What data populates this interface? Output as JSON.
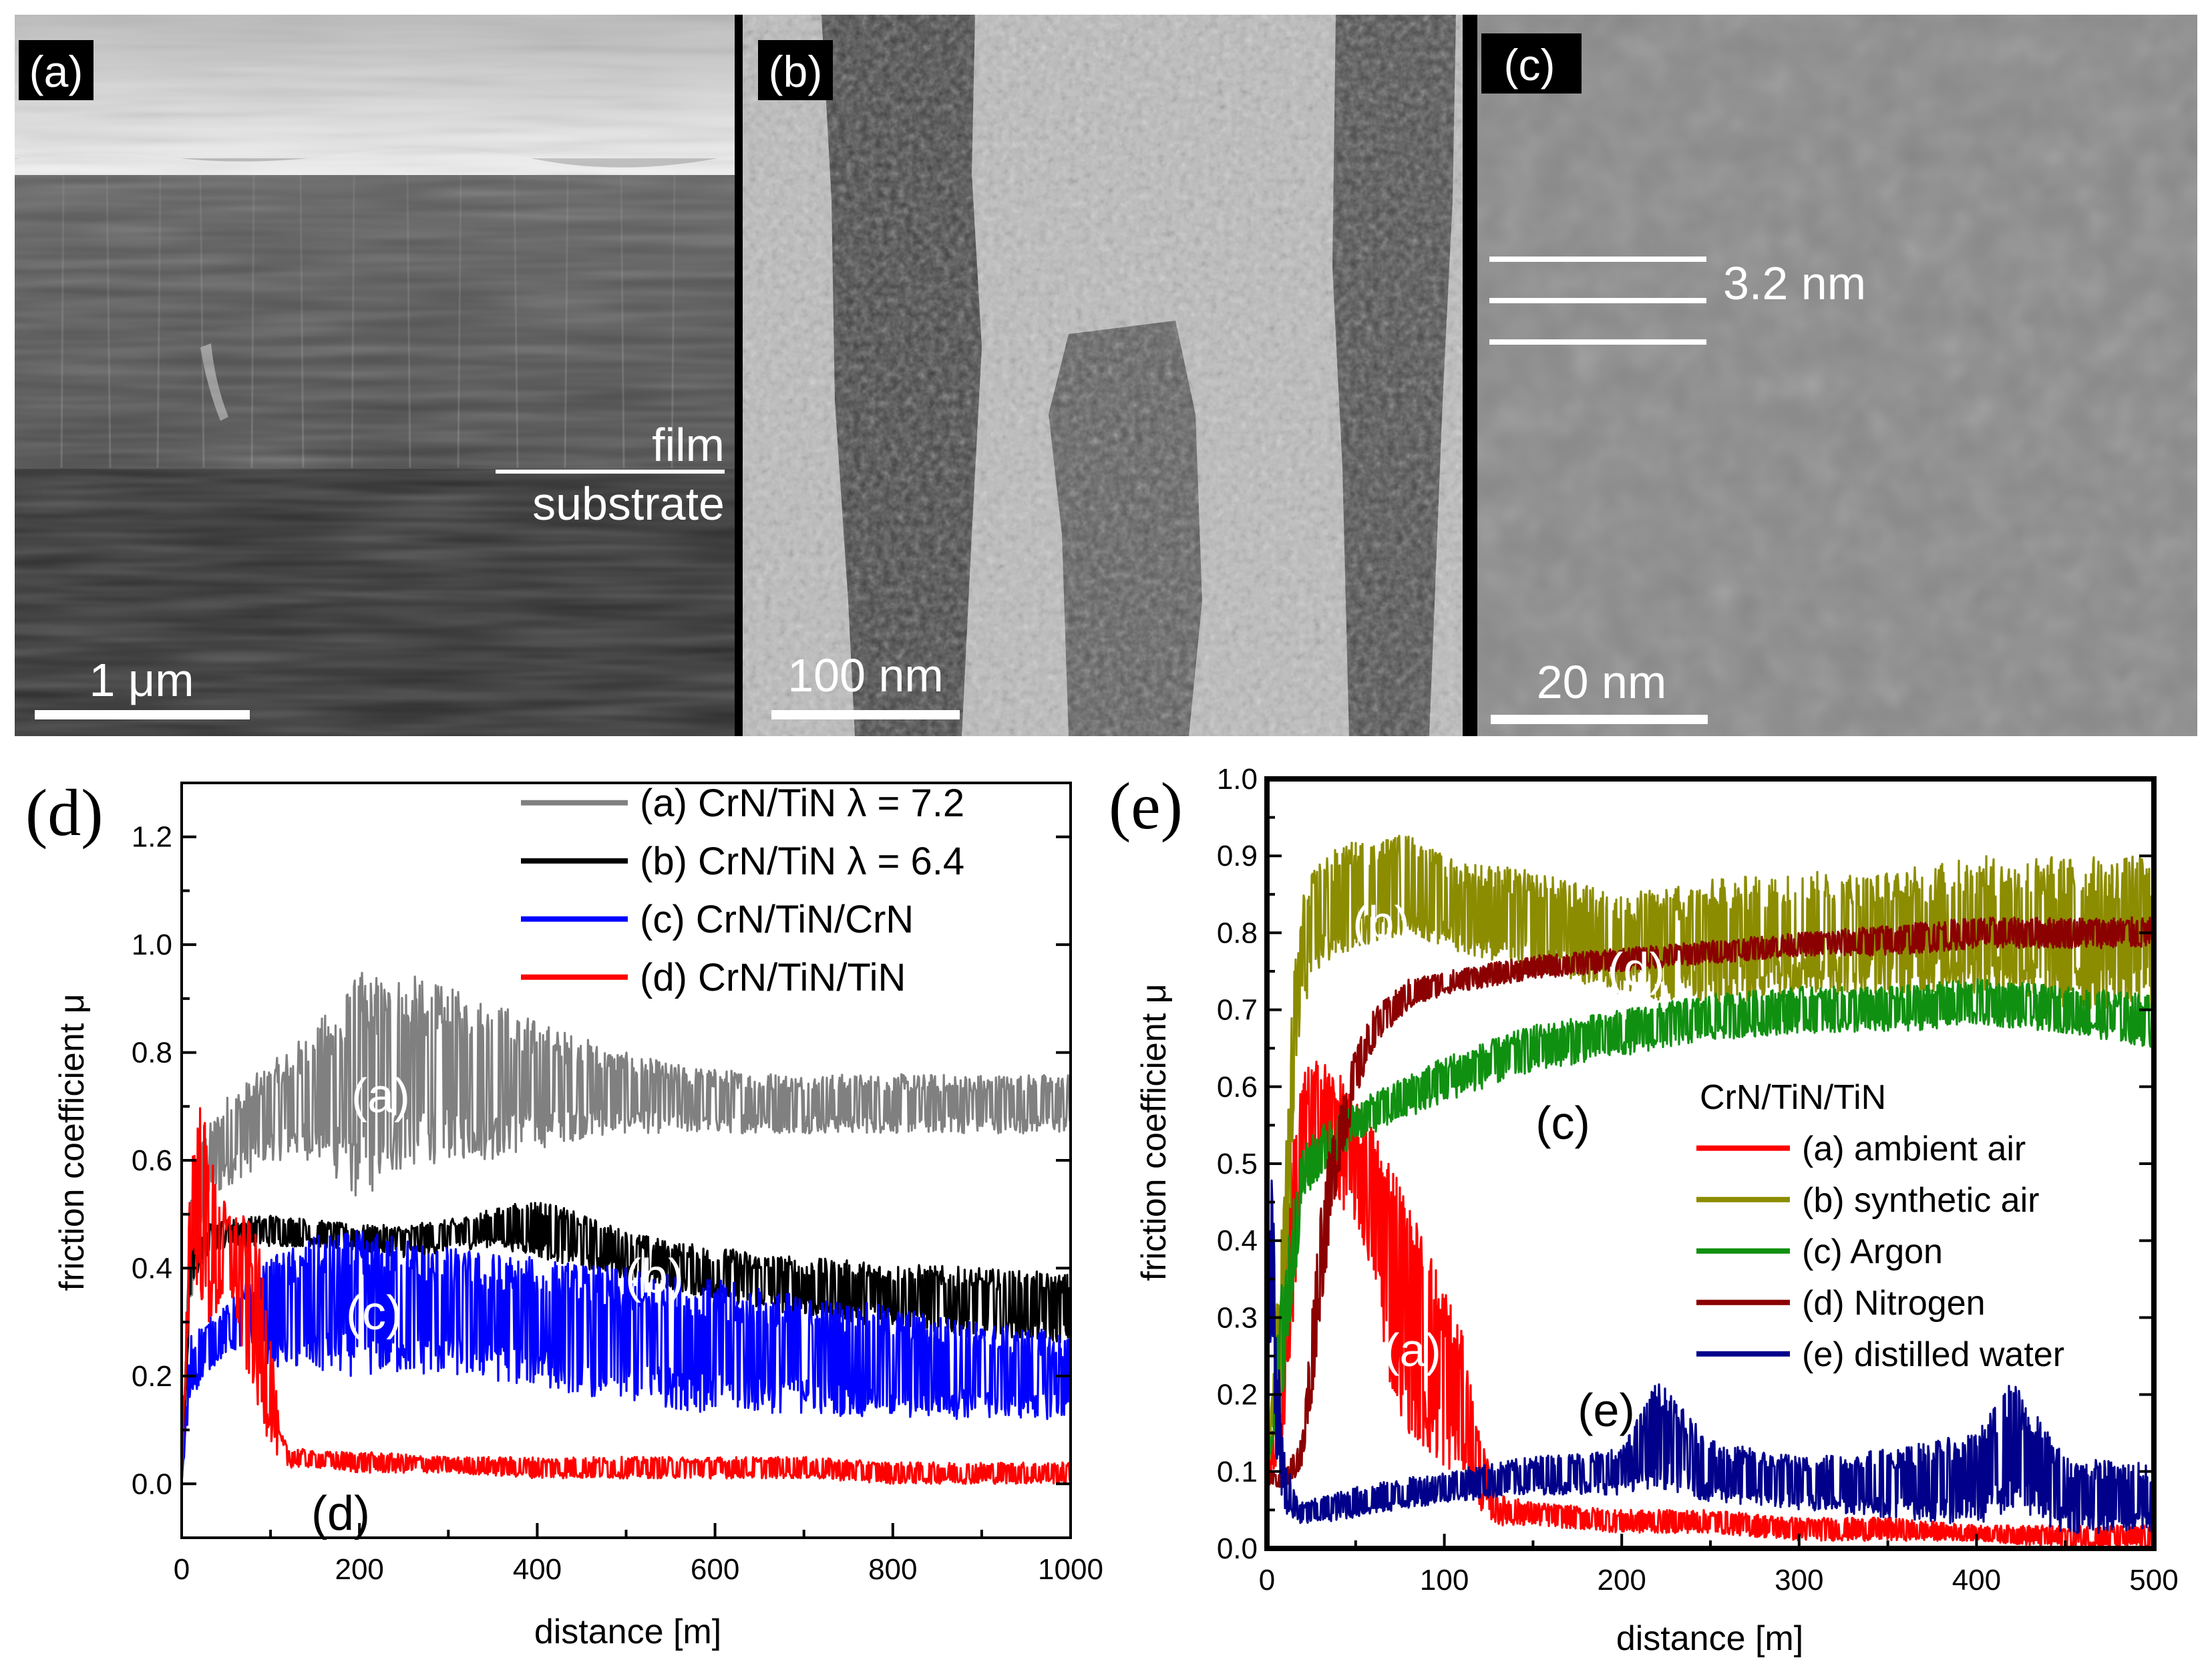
{
  "micrographs": {
    "a": {
      "panel_label": "(a)",
      "scale_bar": "1 μm",
      "film_label": "film",
      "substrate_label": "substrate"
    },
    "b": {
      "panel_label": "(b)",
      "scale_bar": "100 nm"
    },
    "c": {
      "panel_label": "(c)",
      "scale_bar": "20 nm",
      "period_label": "3.2 nm"
    }
  },
  "chart_data": [
    {
      "id": "d",
      "type": "line",
      "panel_label": "(d)",
      "xlabel": "distance [m]",
      "ylabel": "friction coefficient μ",
      "xlim": [
        0,
        1000
      ],
      "ylim": [
        -0.1,
        1.3
      ],
      "xticks": [
        0,
        200,
        400,
        600,
        800,
        1000
      ],
      "yticks": [
        0.0,
        0.2,
        0.4,
        0.6,
        0.8,
        1.0,
        1.2
      ],
      "xticklabels": [
        "0",
        "200",
        "400",
        "600",
        "800",
        "1000"
      ],
      "yticklabels": [
        "0.0",
        "0.2",
        "0.4",
        "0.6",
        "0.8",
        "1.0",
        "1.2"
      ],
      "legend_position": "top-right",
      "series": [
        {
          "name": "(a) CrN/TiN λ = 7.2",
          "color": "#808080",
          "x": [
            0,
            10,
            25,
            50,
            100,
            150,
            200,
            250,
            300,
            350,
            400,
            450,
            500,
            550,
            600,
            700,
            800,
            900,
            1000
          ],
          "low": [
            0.0,
            0.3,
            0.5,
            0.55,
            0.6,
            0.6,
            0.52,
            0.58,
            0.6,
            0.6,
            0.62,
            0.64,
            0.65,
            0.65,
            0.65,
            0.65,
            0.65,
            0.65,
            0.65
          ],
          "high": [
            0.0,
            0.55,
            0.65,
            0.72,
            0.78,
            0.85,
            0.95,
            0.95,
            0.92,
            0.9,
            0.86,
            0.83,
            0.8,
            0.78,
            0.77,
            0.76,
            0.76,
            0.76,
            0.76
          ]
        },
        {
          "name": "(b) CrN/TiN λ = 6.4",
          "color": "#000000",
          "x": [
            0,
            10,
            25,
            50,
            100,
            150,
            200,
            250,
            300,
            350,
            400,
            450,
            500,
            550,
            600,
            700,
            800,
            900,
            1000
          ],
          "low": [
            0.0,
            0.35,
            0.42,
            0.44,
            0.44,
            0.44,
            0.43,
            0.42,
            0.43,
            0.44,
            0.42,
            0.4,
            0.38,
            0.36,
            0.34,
            0.31,
            0.29,
            0.27,
            0.26
          ],
          "high": [
            0.0,
            0.45,
            0.48,
            0.49,
            0.5,
            0.49,
            0.48,
            0.48,
            0.49,
            0.51,
            0.53,
            0.5,
            0.47,
            0.45,
            0.44,
            0.42,
            0.41,
            0.4,
            0.39
          ]
        },
        {
          "name": "(c) CrN/TiN/CrN",
          "color": "#0000ff",
          "x": [
            0,
            10,
            25,
            50,
            70,
            100,
            150,
            200,
            250,
            300,
            400,
            500,
            600,
            700,
            800,
            900,
            1000
          ],
          "low": [
            0.0,
            0.15,
            0.2,
            0.24,
            0.25,
            0.22,
            0.2,
            0.2,
            0.2,
            0.2,
            0.18,
            0.15,
            0.13,
            0.13,
            0.12,
            0.12,
            0.12
          ],
          "high": [
            0.0,
            0.28,
            0.3,
            0.33,
            0.37,
            0.42,
            0.46,
            0.47,
            0.46,
            0.44,
            0.42,
            0.4,
            0.38,
            0.35,
            0.33,
            0.3,
            0.28
          ]
        },
        {
          "name": "(d) CrN/TiN/TiN",
          "color": "#ff0000",
          "x": [
            0,
            10,
            20,
            30,
            40,
            50,
            60,
            70,
            80,
            90,
            100,
            110,
            120,
            150,
            200,
            300,
            400,
            500,
            600,
            700,
            800,
            900,
            1000
          ],
          "low": [
            0.0,
            0.4,
            0.35,
            0.28,
            0.3,
            0.35,
            0.32,
            0.2,
            0.18,
            0.1,
            0.08,
            0.04,
            0.03,
            0.03,
            0.02,
            0.02,
            0.01,
            0.01,
            0.01,
            0.01,
            0.0,
            0.0,
            0.0
          ],
          "high": [
            0.0,
            0.62,
            0.72,
            0.65,
            0.55,
            0.52,
            0.5,
            0.5,
            0.48,
            0.42,
            0.3,
            0.1,
            0.07,
            0.06,
            0.06,
            0.05,
            0.05,
            0.05,
            0.05,
            0.05,
            0.04,
            0.04,
            0.04
          ]
        }
      ],
      "annotations": [
        "(a)",
        "(b)",
        "(c)",
        "(d)"
      ]
    },
    {
      "id": "e",
      "type": "line",
      "panel_label": "(e)",
      "xlabel": "distance [m]",
      "ylabel": "friction coefficient μ",
      "xlim": [
        0,
        500
      ],
      "ylim": [
        0.0,
        1.0
      ],
      "xticks": [
        0,
        100,
        200,
        300,
        400,
        500
      ],
      "yticks": [
        0.0,
        0.1,
        0.2,
        0.3,
        0.4,
        0.5,
        0.6,
        0.7,
        0.8,
        0.9,
        1.0
      ],
      "xticklabels": [
        "0",
        "100",
        "200",
        "300",
        "400",
        "500"
      ],
      "yticklabels": [
        "0.0",
        "0.1",
        "0.2",
        "0.3",
        "0.4",
        "0.5",
        "0.6",
        "0.7",
        "0.8",
        "0.9",
        "1.0"
      ],
      "legend_title": "CrN/TiN/TiN",
      "legend_position": "center-right",
      "series": [
        {
          "name": "(a) ambient air",
          "color": "#ff0000",
          "x": [
            0,
            5,
            10,
            15,
            20,
            30,
            40,
            50,
            60,
            70,
            80,
            90,
            100,
            110,
            120,
            130,
            150,
            200,
            250,
            300,
            350,
            400,
            450,
            500
          ],
          "low": [
            0.08,
            0.1,
            0.15,
            0.3,
            0.45,
            0.5,
            0.45,
            0.42,
            0.35,
            0.2,
            0.15,
            0.12,
            0.1,
            0.1,
            0.05,
            0.03,
            0.03,
            0.02,
            0.02,
            0.01,
            0.01,
            0.01,
            0.0,
            0.0
          ],
          "high": [
            0.1,
            0.2,
            0.4,
            0.55,
            0.62,
            0.64,
            0.62,
            0.58,
            0.55,
            0.52,
            0.45,
            0.4,
            0.35,
            0.28,
            0.15,
            0.07,
            0.06,
            0.05,
            0.05,
            0.04,
            0.04,
            0.03,
            0.03,
            0.03
          ]
        },
        {
          "name": "(b) synthetic air",
          "color": "#8c8c00",
          "x": [
            0,
            10,
            15,
            20,
            30,
            50,
            80,
            100,
            150,
            200,
            250,
            300,
            350,
            400,
            450,
            500
          ],
          "low": [
            0.1,
            0.2,
            0.55,
            0.7,
            0.75,
            0.78,
            0.8,
            0.78,
            0.75,
            0.72,
            0.7,
            0.72,
            0.72,
            0.72,
            0.7,
            0.7
          ],
          "high": [
            0.1,
            0.5,
            0.75,
            0.85,
            0.9,
            0.92,
            0.93,
            0.9,
            0.88,
            0.85,
            0.87,
            0.88,
            0.88,
            0.9,
            0.9,
            0.9
          ]
        },
        {
          "name": "(c) Argon",
          "color": "#109010",
          "x": [
            0,
            10,
            20,
            30,
            50,
            100,
            150,
            200,
            250,
            300,
            350,
            400,
            450,
            500
          ],
          "low": [
            0.1,
            0.2,
            0.45,
            0.48,
            0.53,
            0.58,
            0.62,
            0.64,
            0.66,
            0.67,
            0.67,
            0.68,
            0.67,
            0.65
          ],
          "high": [
            0.1,
            0.4,
            0.52,
            0.55,
            0.58,
            0.64,
            0.68,
            0.7,
            0.72,
            0.73,
            0.73,
            0.74,
            0.73,
            0.72
          ]
        },
        {
          "name": "(d) Nitrogen",
          "color": "#8b0000",
          "x": [
            0,
            10,
            20,
            25,
            30,
            40,
            50,
            60,
            80,
            100,
            150,
            200,
            250,
            300,
            350,
            400,
            450,
            500
          ],
          "low": [
            0.08,
            0.08,
            0.1,
            0.18,
            0.3,
            0.48,
            0.58,
            0.65,
            0.7,
            0.72,
            0.74,
            0.75,
            0.76,
            0.77,
            0.77,
            0.78,
            0.78,
            0.78
          ],
          "high": [
            0.1,
            0.1,
            0.15,
            0.3,
            0.45,
            0.58,
            0.65,
            0.7,
            0.74,
            0.75,
            0.77,
            0.78,
            0.79,
            0.8,
            0.81,
            0.82,
            0.82,
            0.82
          ]
        },
        {
          "name": "(e) distilled water",
          "color": "#00008b",
          "x": [
            0,
            3,
            5,
            10,
            15,
            20,
            50,
            100,
            150,
            200,
            220,
            250,
            300,
            350,
            400,
            420,
            450,
            500
          ],
          "low": [
            0.2,
            0.3,
            0.1,
            0.05,
            0.03,
            0.03,
            0.04,
            0.06,
            0.07,
            0.07,
            0.08,
            0.06,
            0.05,
            0.04,
            0.03,
            0.05,
            0.02,
            0.02
          ],
          "high": [
            0.45,
            0.5,
            0.3,
            0.12,
            0.08,
            0.06,
            0.08,
            0.1,
            0.12,
            0.13,
            0.22,
            0.14,
            0.12,
            0.13,
            0.15,
            0.22,
            0.12,
            0.11
          ]
        }
      ],
      "annotations": [
        "(a)",
        "(b)",
        "(c)",
        "(d)",
        "(e)"
      ]
    }
  ]
}
